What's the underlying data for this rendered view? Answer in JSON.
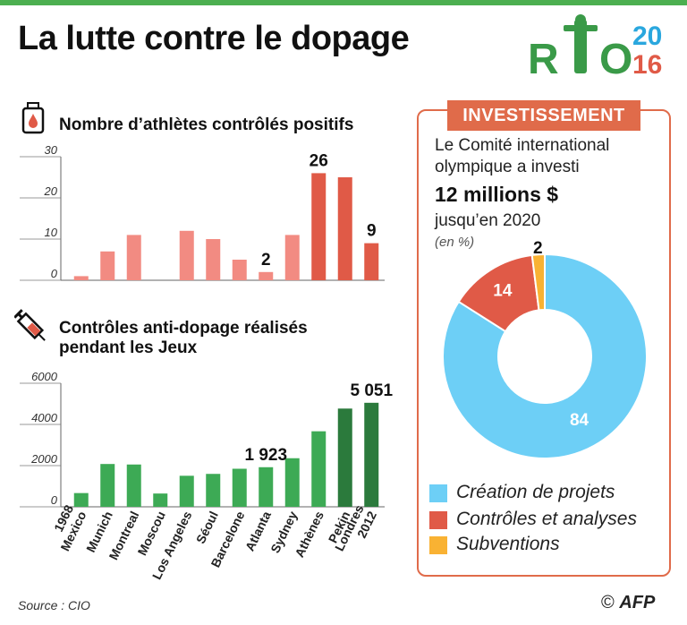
{
  "header": {
    "title": "La lutte contre le dopage",
    "logo_text_left": "R",
    "logo_text_right": "O",
    "logo_year_top": "20",
    "logo_year_bottom": "16"
  },
  "chart_data": [
    {
      "type": "bar",
      "title": "Nombre d’athlètes contrôlés positifs",
      "categories": [
        "1968 Mexico",
        "Munich",
        "Montreal",
        "Moscou",
        "Los Angeles",
        "Séoul",
        "Barcelone",
        "Atlanta",
        "Sydney",
        "Athènes",
        "Pekin",
        "Londres 2012"
      ],
      "values": [
        1,
        7,
        11,
        null,
        12,
        10,
        5,
        2,
        11,
        26,
        25,
        9
      ],
      "ylim": [
        0,
        30
      ],
      "yticks": [
        "0",
        "10",
        "20",
        "30"
      ],
      "data_labels": {
        "Atlanta": "2",
        "Athènes": "26",
        "Londres 2012": "9"
      },
      "colors": {
        "light": "#f28b82",
        "dark": "#e05a47"
      }
    },
    {
      "type": "bar",
      "title": "Contrôles anti-dopage réalisés pendant les Jeux",
      "categories": [
        "1968 Mexico",
        "Munich",
        "Montreal",
        "Moscou",
        "Los Angeles",
        "Séoul",
        "Barcelone",
        "Atlanta",
        "Sydney",
        "Athènes",
        "Pekin",
        "Londres 2012"
      ],
      "category_lines": [
        [
          "1968",
          "Mexico"
        ],
        [
          "Munich"
        ],
        [
          "Montreal"
        ],
        [
          "Moscou"
        ],
        [
          "Los Angeles"
        ],
        [
          "Séoul"
        ],
        [
          "Barcelone"
        ],
        [
          "Atlanta"
        ],
        [
          "Sydney"
        ],
        [
          "Athènes"
        ],
        [
          "Pekin"
        ],
        [
          "Londres",
          "2012"
        ]
      ],
      "values": [
        667,
        2079,
        2054,
        645,
        1507,
        1598,
        1848,
        1923,
        2359,
        3667,
        4770,
        5051
      ],
      "ylim": [
        0,
        6000
      ],
      "yticks": [
        "0",
        "2000",
        "4000",
        "6000"
      ],
      "data_labels": {
        "Atlanta": "1 923",
        "Londres 2012": "5 051"
      },
      "colors": {
        "light": "#3daa55",
        "dark": "#2b7a3c"
      }
    },
    {
      "type": "pie",
      "title": "INVESTISSEMENT",
      "labels": [
        "Création de projets",
        "Contrôles et analyses",
        "Subventions"
      ],
      "values": [
        84,
        14,
        2
      ],
      "value_labels": [
        "84",
        "14",
        "2"
      ],
      "colors": [
        "#6dcff6",
        "#e05a47",
        "#f9b233"
      ]
    }
  ],
  "investment": {
    "line1": "Le Comité international",
    "line2": "olympique a investi",
    "amount": "12 millions $",
    "line3": "jusqu’en 2020",
    "unit": "(en %)"
  },
  "footer": {
    "source": "Source : CIO",
    "copyright": "©",
    "agency": "AFP"
  }
}
